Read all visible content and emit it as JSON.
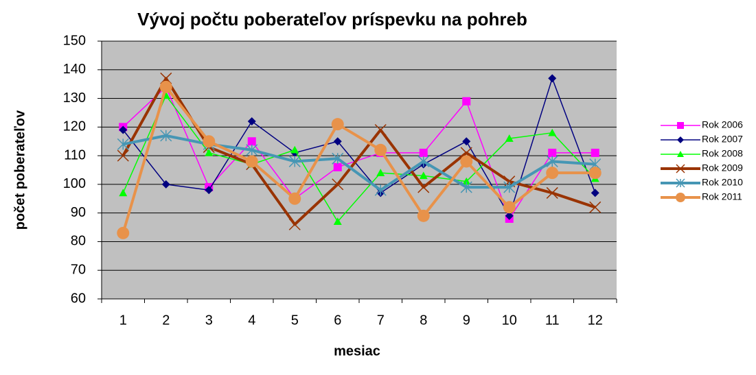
{
  "chart_data": {
    "type": "line",
    "title": "Vývoj počtu poberateľov príspevku na pohreb",
    "x_label": "mesiac",
    "y_label": "počet poberateľov",
    "categories": [
      "1",
      "2",
      "3",
      "4",
      "5",
      "6",
      "7",
      "8",
      "9",
      "10",
      "11",
      "12"
    ],
    "series": [
      {
        "name": "Rok 2006",
        "color": "#ff00ff",
        "marker": "square",
        "values": [
          120,
          134,
          99,
          115,
          95,
          106,
          111,
          111,
          129,
          88,
          111,
          111
        ]
      },
      {
        "name": "Rok 2007",
        "color": "#000080",
        "marker": "diamond",
        "values": [
          119,
          100,
          98,
          122,
          111,
          115,
          97,
          107,
          115,
          89,
          137,
          97
        ]
      },
      {
        "name": "Rok 2008",
        "color": "#00ff00",
        "marker": "triangle",
        "values": [
          97,
          131,
          111,
          107,
          112,
          87,
          104,
          103,
          101,
          116,
          118,
          102
        ]
      },
      {
        "name": "Rok 2009",
        "color": "#993300",
        "marker": "x",
        "values": [
          110,
          137,
          113,
          107,
          86,
          100,
          119,
          99,
          111,
          101,
          97,
          92
        ]
      },
      {
        "name": "Rok 2010",
        "color": "#4696b4",
        "marker": "star",
        "values": [
          114,
          117,
          114,
          112,
          108,
          109,
          98,
          108,
          99,
          99,
          108,
          107
        ]
      },
      {
        "name": "Rok 2011",
        "color": "#e8924a",
        "marker": "circle",
        "values": [
          83,
          134,
          115,
          108,
          95,
          121,
          112,
          89,
          108,
          92,
          104,
          104
        ]
      }
    ],
    "ylim": [
      60,
      150
    ],
    "yticks": [
      60,
      70,
      80,
      90,
      100,
      110,
      120,
      130,
      140,
      150
    ],
    "grid": true,
    "legend": "right"
  }
}
